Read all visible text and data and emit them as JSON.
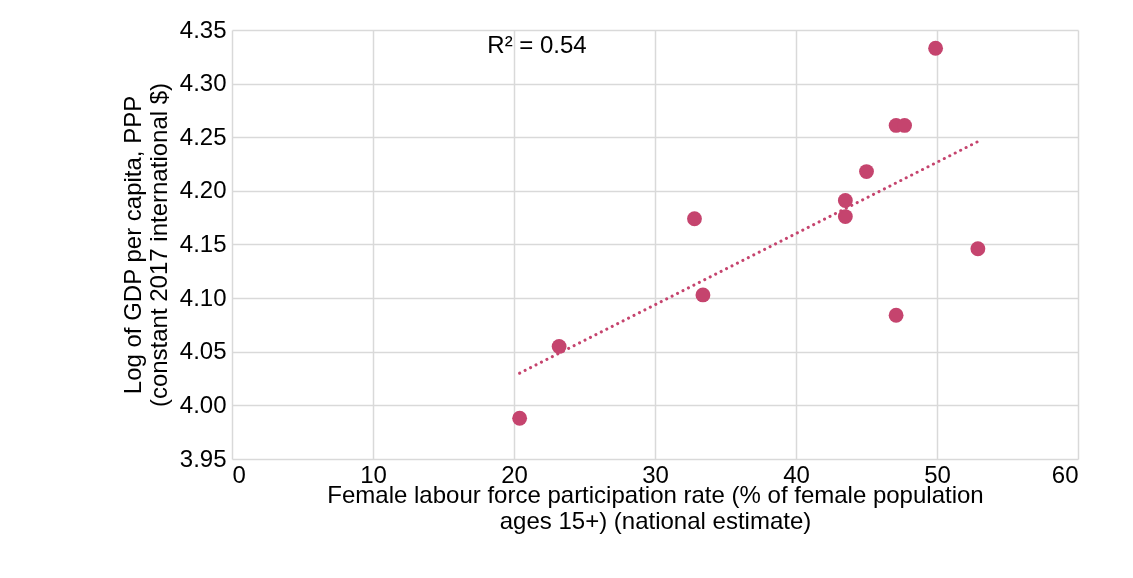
{
  "chart_data": {
    "type": "scatter",
    "xlabel": "Female labour force participation rate (% of female population\nages 15+) (national estimate)",
    "ylabel": "Log of GDP per capita, PPP\n(constant 2017 international $)",
    "series": [
      {
        "marker": "circle",
        "color": "#c5446e",
        "x": [
          20.4,
          23.2,
          32.8,
          33.4,
          43.5,
          43.5,
          45.0,
          47.1,
          47.7,
          47.1,
          49.9,
          52.9
        ],
        "values": [
          3.988,
          4.055,
          4.174,
          4.103,
          4.191,
          4.176,
          4.218,
          4.261,
          4.261,
          4.084,
          4.333,
          4.146
        ]
      },
      {
        "type": "line",
        "line_style": "dotted",
        "color": "#c5446e",
        "x": [
          20.4,
          52.9
        ],
        "values": [
          4.03,
          4.246
        ]
      }
    ],
    "annotations": [
      "R² = 0.54"
    ],
    "grid": true,
    "xlim": [
      0,
      60
    ],
    "xticks": [
      0,
      10,
      20,
      30,
      40,
      50,
      60
    ],
    "ylim": [
      3.95,
      4.35
    ],
    "yticks": [
      {
        "value": 3.95,
        "label": "3.95"
      },
      {
        "value": 4.0,
        "label": "4.00"
      },
      {
        "value": 4.05,
        "label": "4.05"
      },
      {
        "value": 4.1,
        "label": "4.10"
      },
      {
        "value": 4.15,
        "label": "4.15"
      },
      {
        "value": 4.2,
        "label": "4.20"
      },
      {
        "value": 4.25,
        "label": "4.25"
      },
      {
        "value": 4.3,
        "label": "4.30"
      },
      {
        "value": 4.35,
        "label": "4.35"
      }
    ]
  }
}
